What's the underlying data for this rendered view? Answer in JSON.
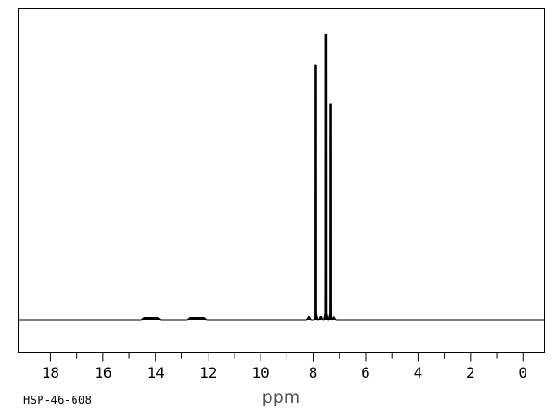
{
  "footer": {
    "spectrum_id": "HSP-46-608"
  },
  "colors": {
    "background": "#ffffff",
    "frame": "#000000",
    "trace": "#000000",
    "tick": "#000000",
    "tick_label": "#000000",
    "axis_title": "#555555"
  },
  "chart_data": {
    "type": "line",
    "kind": "1H NMR spectrum",
    "title": "",
    "xlabel": "ppm",
    "ylabel": "",
    "x_range": [
      19.23,
      -0.83
    ],
    "x_axis_reversed": true,
    "grid": false,
    "legend": "none",
    "x_ticks_major": [
      18,
      16,
      14,
      12,
      10,
      8,
      6,
      4,
      2,
      0
    ],
    "x_ticks_minor": [
      17,
      15,
      13,
      11,
      9,
      7,
      5,
      3,
      1
    ],
    "peaks": [
      {
        "ppm": 7.9,
        "rel_intensity": 0.894
      },
      {
        "ppm": 7.51,
        "rel_intensity": 1.0
      },
      {
        "ppm": 7.35,
        "rel_intensity": 0.756
      }
    ],
    "satellite_peaks": [
      {
        "ppm": 8.16,
        "rel_intensity": 0.013
      },
      {
        "ppm": 7.72,
        "rel_intensity": 0.014
      },
      {
        "ppm": 7.21,
        "rel_intensity": 0.011
      }
    ],
    "broad_weak_signals": [
      {
        "ppm_start": 14.45,
        "ppm_end": 13.91,
        "rel_intensity": 0.008
      },
      {
        "ppm_start": 12.71,
        "ppm_end": 12.16,
        "rel_intensity": 0.008
      }
    ]
  }
}
